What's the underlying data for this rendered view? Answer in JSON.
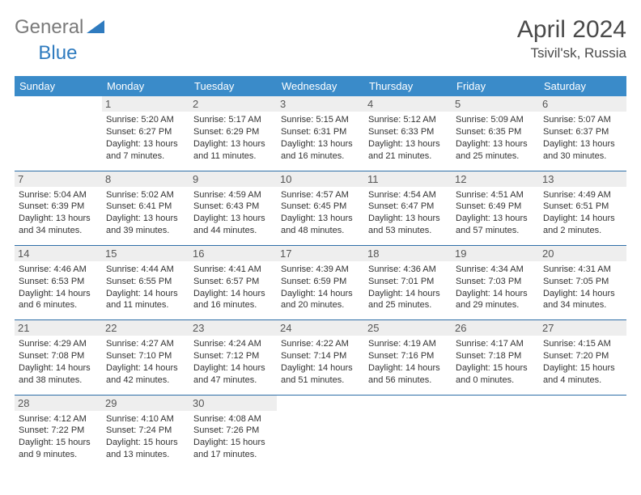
{
  "logo": {
    "general": "General",
    "blue": "Blue"
  },
  "title": "April 2024",
  "location": "Tsivil'sk, Russia",
  "headers": [
    "Sunday",
    "Monday",
    "Tuesday",
    "Wednesday",
    "Thursday",
    "Friday",
    "Saturday"
  ],
  "colors": {
    "header_bg": "#3a8bc9",
    "header_text": "#ffffff",
    "border": "#2f6fa8",
    "daynum_bg": "#eeeeee",
    "text": "#333333",
    "logo_gray": "#7a7a7a",
    "logo_blue": "#2f7bbf"
  },
  "weeks": [
    [
      null,
      {
        "n": "1",
        "sr": "5:20 AM",
        "ss": "6:27 PM",
        "dl": "13 hours and 7 minutes."
      },
      {
        "n": "2",
        "sr": "5:17 AM",
        "ss": "6:29 PM",
        "dl": "13 hours and 11 minutes."
      },
      {
        "n": "3",
        "sr": "5:15 AM",
        "ss": "6:31 PM",
        "dl": "13 hours and 16 minutes."
      },
      {
        "n": "4",
        "sr": "5:12 AM",
        "ss": "6:33 PM",
        "dl": "13 hours and 21 minutes."
      },
      {
        "n": "5",
        "sr": "5:09 AM",
        "ss": "6:35 PM",
        "dl": "13 hours and 25 minutes."
      },
      {
        "n": "6",
        "sr": "5:07 AM",
        "ss": "6:37 PM",
        "dl": "13 hours and 30 minutes."
      }
    ],
    [
      {
        "n": "7",
        "sr": "5:04 AM",
        "ss": "6:39 PM",
        "dl": "13 hours and 34 minutes."
      },
      {
        "n": "8",
        "sr": "5:02 AM",
        "ss": "6:41 PM",
        "dl": "13 hours and 39 minutes."
      },
      {
        "n": "9",
        "sr": "4:59 AM",
        "ss": "6:43 PM",
        "dl": "13 hours and 44 minutes."
      },
      {
        "n": "10",
        "sr": "4:57 AM",
        "ss": "6:45 PM",
        "dl": "13 hours and 48 minutes."
      },
      {
        "n": "11",
        "sr": "4:54 AM",
        "ss": "6:47 PM",
        "dl": "13 hours and 53 minutes."
      },
      {
        "n": "12",
        "sr": "4:51 AM",
        "ss": "6:49 PM",
        "dl": "13 hours and 57 minutes."
      },
      {
        "n": "13",
        "sr": "4:49 AM",
        "ss": "6:51 PM",
        "dl": "14 hours and 2 minutes."
      }
    ],
    [
      {
        "n": "14",
        "sr": "4:46 AM",
        "ss": "6:53 PM",
        "dl": "14 hours and 6 minutes."
      },
      {
        "n": "15",
        "sr": "4:44 AM",
        "ss": "6:55 PM",
        "dl": "14 hours and 11 minutes."
      },
      {
        "n": "16",
        "sr": "4:41 AM",
        "ss": "6:57 PM",
        "dl": "14 hours and 16 minutes."
      },
      {
        "n": "17",
        "sr": "4:39 AM",
        "ss": "6:59 PM",
        "dl": "14 hours and 20 minutes."
      },
      {
        "n": "18",
        "sr": "4:36 AM",
        "ss": "7:01 PM",
        "dl": "14 hours and 25 minutes."
      },
      {
        "n": "19",
        "sr": "4:34 AM",
        "ss": "7:03 PM",
        "dl": "14 hours and 29 minutes."
      },
      {
        "n": "20",
        "sr": "4:31 AM",
        "ss": "7:05 PM",
        "dl": "14 hours and 34 minutes."
      }
    ],
    [
      {
        "n": "21",
        "sr": "4:29 AM",
        "ss": "7:08 PM",
        "dl": "14 hours and 38 minutes."
      },
      {
        "n": "22",
        "sr": "4:27 AM",
        "ss": "7:10 PM",
        "dl": "14 hours and 42 minutes."
      },
      {
        "n": "23",
        "sr": "4:24 AM",
        "ss": "7:12 PM",
        "dl": "14 hours and 47 minutes."
      },
      {
        "n": "24",
        "sr": "4:22 AM",
        "ss": "7:14 PM",
        "dl": "14 hours and 51 minutes."
      },
      {
        "n": "25",
        "sr": "4:19 AM",
        "ss": "7:16 PM",
        "dl": "14 hours and 56 minutes."
      },
      {
        "n": "26",
        "sr": "4:17 AM",
        "ss": "7:18 PM",
        "dl": "15 hours and 0 minutes."
      },
      {
        "n": "27",
        "sr": "4:15 AM",
        "ss": "7:20 PM",
        "dl": "15 hours and 4 minutes."
      }
    ],
    [
      {
        "n": "28",
        "sr": "4:12 AM",
        "ss": "7:22 PM",
        "dl": "15 hours and 9 minutes."
      },
      {
        "n": "29",
        "sr": "4:10 AM",
        "ss": "7:24 PM",
        "dl": "15 hours and 13 minutes."
      },
      {
        "n": "30",
        "sr": "4:08 AM",
        "ss": "7:26 PM",
        "dl": "15 hours and 17 minutes."
      },
      null,
      null,
      null,
      null
    ]
  ],
  "labels": {
    "sunrise": "Sunrise:",
    "sunset": "Sunset:",
    "daylight": "Daylight:"
  }
}
